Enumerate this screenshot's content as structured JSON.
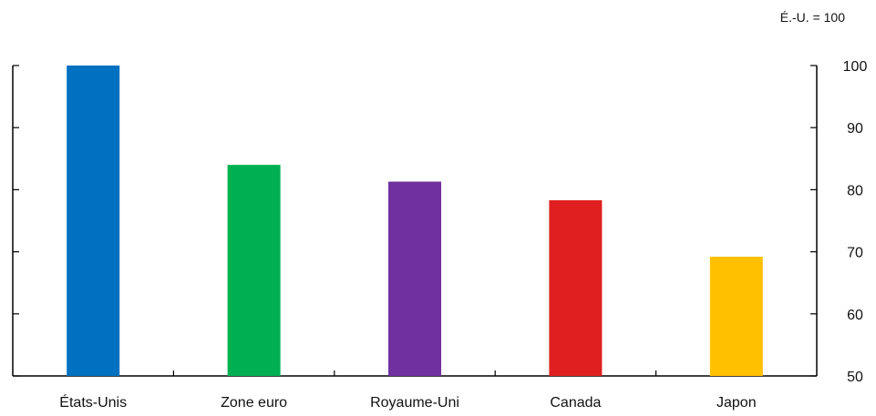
{
  "chart_data": {
    "type": "bar",
    "title": "",
    "unit_note": "É.-U. = 100",
    "xlabel": "",
    "ylabel": "",
    "categories": [
      "États-Unis",
      "Zone euro",
      "Royaume-Uni",
      "Canada",
      "Japon"
    ],
    "values": [
      100,
      84,
      81.3,
      78.3,
      69.2
    ],
    "colors": [
      "#0070c0",
      "#00b050",
      "#7030a0",
      "#e02020",
      "#ffc000"
    ],
    "ylim": [
      50,
      100
    ],
    "yticks": [
      "50",
      "60",
      "70",
      "80",
      "90",
      "100"
    ],
    "y_axis_side": "right",
    "grid": false,
    "legend": "none"
  }
}
